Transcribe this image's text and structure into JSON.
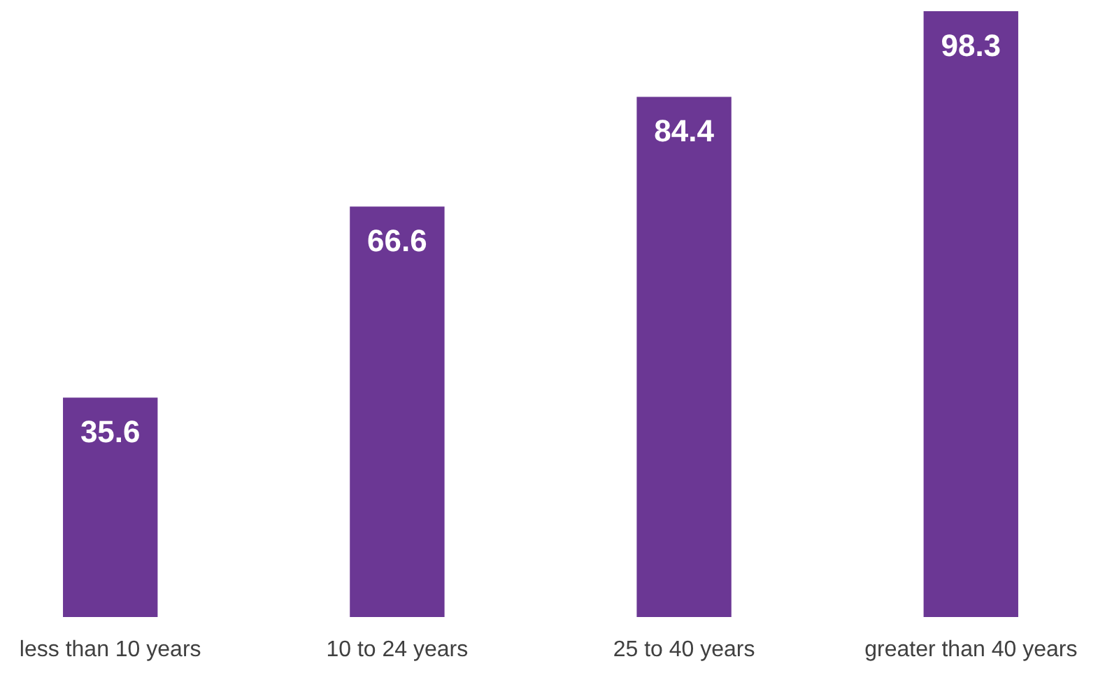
{
  "chart_data": {
    "type": "bar",
    "categories": [
      "less than 10 years",
      "10 to 24 years",
      "25 to 40 years",
      "greater than 40 years"
    ],
    "values": [
      35.6,
      66.6,
      84.4,
      98.3
    ],
    "color": "#6b3794",
    "data_labels": true
  }
}
